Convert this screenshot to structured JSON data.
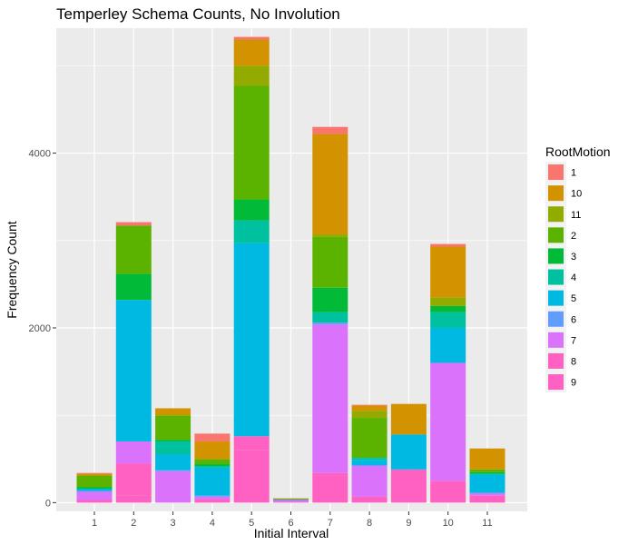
{
  "chart_data": {
    "type": "bar",
    "stacked": true,
    "title": "Temperley Schema Counts, No Involution",
    "xlabel": "Initial Interval",
    "ylabel": "Frequency Count",
    "categories": [
      "1",
      "2",
      "3",
      "4",
      "5",
      "6",
      "7",
      "8",
      "9",
      "10",
      "11"
    ],
    "ylim": [
      -100,
      5430
    ],
    "yticks": [
      0,
      2000,
      4000
    ],
    "grid": true,
    "legend": {
      "title": "RootMotion",
      "position": "right"
    },
    "series": [
      {
        "name": "1",
        "color": "#F8766D",
        "values": [
          10,
          40,
          0,
          90,
          30,
          0,
          80,
          10,
          0,
          30,
          0
        ]
      },
      {
        "name": "10",
        "color": "#D39200",
        "values": [
          20,
          0,
          80,
          200,
          300,
          10,
          1150,
          60,
          350,
          580,
          240
        ]
      },
      {
        "name": "11",
        "color": "#93AA00",
        "values": [
          0,
          0,
          0,
          0,
          230,
          0,
          30,
          80,
          0,
          100,
          0
        ]
      },
      {
        "name": "2",
        "color": "#5BB300",
        "values": [
          130,
          550,
          280,
          60,
          1300,
          0,
          580,
          450,
          0,
          0,
          30
        ]
      },
      {
        "name": "3",
        "color": "#00BA38",
        "values": [
          20,
          300,
          20,
          20,
          240,
          0,
          280,
          10,
          0,
          70,
          20
        ]
      },
      {
        "name": "4",
        "color": "#00C19F",
        "values": [
          0,
          0,
          150,
          20,
          260,
          10,
          120,
          20,
          0,
          180,
          10
        ]
      },
      {
        "name": "5",
        "color": "#00B9E3",
        "values": [
          30,
          1620,
          180,
          320,
          2210,
          0,
          0,
          60,
          400,
          400,
          210
        ]
      },
      {
        "name": "6",
        "color": "#619CFF",
        "values": [
          0,
          0,
          10,
          10,
          0,
          0,
          20,
          10,
          0,
          0,
          0
        ]
      },
      {
        "name": "7",
        "color": "#DB72FB",
        "values": [
          100,
          250,
          360,
          30,
          0,
          20,
          1700,
          350,
          0,
          1350,
          30
        ]
      },
      {
        "name": "8",
        "color": "#FF61C3",
        "values": [
          30,
          370,
          0,
          40,
          160,
          0,
          30,
          0,
          380,
          80,
          0
        ]
      },
      {
        "name": "9",
        "color": "#FF61C3",
        "values": [
          0,
          80,
          0,
          0,
          600,
          10,
          310,
          70,
          0,
          170,
          80
        ]
      }
    ]
  }
}
